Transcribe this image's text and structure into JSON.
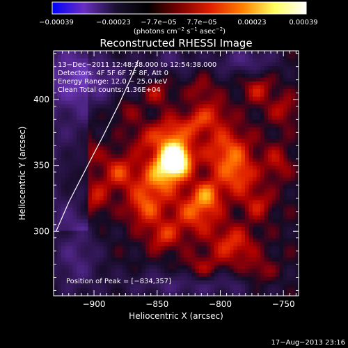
{
  "chart_data": {
    "type": "heatmap",
    "title": "Reconstructed RHESSI Image",
    "xlabel": "Heliocentric X (arcsec)",
    "ylabel": "Heliocentric Y (arcsec)",
    "xlim": [
      -932,
      -738
    ],
    "ylim": [
      251,
      437
    ],
    "x_ticks": [
      -900,
      -850,
      -800,
      -750
    ],
    "x_tick_labels": [
      "−900",
      "−850",
      "−800",
      "−750"
    ],
    "y_ticks": [
      300,
      350,
      400
    ],
    "y_tick_labels": [
      "300",
      "350",
      "400"
    ],
    "colorbar": {
      "min": -0.00039,
      "max": 0.00039,
      "tick_labels": [
        "−0.00039",
        "−0.00023",
        "−7.7e−05",
        "7.7e−05",
        "0.00023",
        "0.00039"
      ],
      "unit_prefix": "(photons cm",
      "unit_sup1": "−2",
      "unit_mid": " s",
      "unit_sup2": "−1",
      "unit_mid2": " asec",
      "unit_sup3": "−2",
      "unit_suffix": ")",
      "stops": [
        "#0000ff",
        "#6a2fc0",
        "#1a1030",
        "#000000",
        "#7a0000",
        "#e02000",
        "#ff8000",
        "#ffff60",
        "#ffffff"
      ]
    },
    "info_lines": [
      "13−Dec−2011 12:48:38.000 to 12:54:38.000",
      "Detectors: 4F 5F 6F 7F 8F, Att 0",
      "Energy Range: 12.0 − 25.0 keV",
      "Clean    Total counts: 1.36E+04"
    ],
    "peak_label": "Position of Peak = [−834,357]",
    "peak": [
      -834,
      357
    ],
    "limb_points": [
      [
        -930,
        300
      ],
      [
        -920,
        322
      ],
      [
        -905,
        350
      ],
      [
        -893,
        372
      ],
      [
        -880,
        397
      ],
      [
        -870,
        418
      ],
      [
        -865,
        430
      ]
    ],
    "sources": [
      [
        -834,
        355,
        8,
        9,
        1.0
      ],
      [
        -842,
        352,
        10,
        10,
        0.6
      ],
      [
        -850,
        338,
        12,
        10,
        0.45
      ],
      [
        -860,
        318,
        10,
        10,
        0.5
      ],
      [
        -845,
        296,
        9,
        8,
        0.4
      ],
      [
        -820,
        314,
        14,
        12,
        0.5
      ],
      [
        -810,
        328,
        8,
        8,
        0.45
      ],
      [
        -795,
        360,
        14,
        14,
        0.55
      ],
      [
        -785,
        340,
        10,
        10,
        0.4
      ],
      [
        -790,
        290,
        12,
        10,
        0.45
      ],
      [
        -770,
        320,
        8,
        8,
        0.35
      ],
      [
        -755,
        352,
        8,
        10,
        0.3
      ],
      [
        -750,
        392,
        8,
        8,
        0.3
      ],
      [
        -840,
        375,
        9,
        9,
        0.45
      ],
      [
        -820,
        382,
        8,
        8,
        0.4
      ],
      [
        -805,
        390,
        8,
        8,
        0.3
      ],
      [
        -860,
        370,
        8,
        8,
        0.3
      ],
      [
        -880,
        345,
        10,
        10,
        0.45
      ],
      [
        -900,
        325,
        8,
        10,
        0.35
      ],
      [
        -905,
        360,
        7,
        7,
        0.25
      ],
      [
        -875,
        392,
        7,
        7,
        0.25
      ],
      [
        -850,
        405,
        8,
        7,
        0.3
      ],
      [
        -815,
        408,
        7,
        7,
        0.25
      ],
      [
        -770,
        408,
        8,
        8,
        0.35
      ],
      [
        -815,
        270,
        12,
        8,
        0.35
      ],
      [
        -770,
        268,
        10,
        8,
        0.3
      ],
      [
        -920,
        342,
        6,
        8,
        0.25
      ],
      [
        -820,
        260,
        40,
        8,
        -0.4
      ],
      [
        -905,
        415,
        22,
        14,
        -0.55
      ],
      [
        -780,
        430,
        18,
        8,
        -0.4
      ],
      [
        -915,
        280,
        14,
        20,
        -0.4
      ],
      [
        -840,
        430,
        14,
        8,
        -0.3
      ]
    ]
  },
  "footer": {
    "timestamp": "17−Aug−2013 23:16"
  }
}
